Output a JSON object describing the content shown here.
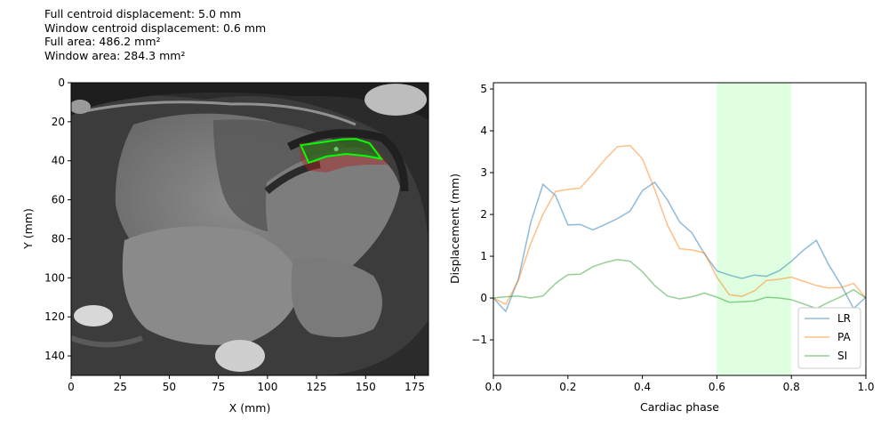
{
  "info_lines": [
    "Full centroid displacement: 5.0 mm",
    "Window centroid displacement: 0.6 mm",
    "Full area: 486.2 mm²",
    "Window area: 284.3 mm²"
  ],
  "colors": {
    "LR": "#1f77b4",
    "PA": "#ff7f0e",
    "SI": "#2ca02c",
    "window": "#ccffcc",
    "contour": "#00ff00",
    "full_region": "#b22222"
  },
  "chart_data": [
    {
      "type": "image",
      "xlabel": "X (mm)",
      "ylabel": "Y (mm)",
      "xlim": [
        0,
        182
      ],
      "ylim": [
        150,
        0
      ],
      "xticks": [
        0,
        25,
        50,
        75,
        100,
        125,
        150,
        175
      ],
      "yticks": [
        0,
        20,
        40,
        60,
        80,
        100,
        120,
        140
      ],
      "window_contour": [
        [
          117,
          32
        ],
        [
          128,
          30.5
        ],
        [
          138,
          29
        ],
        [
          145,
          28.8
        ],
        [
          152,
          31
        ],
        [
          158,
          39
        ],
        [
          150,
          37.5
        ],
        [
          140,
          36.5
        ],
        [
          130,
          37.8
        ],
        [
          121,
          41
        ]
      ],
      "full_region": [
        [
          116,
          31
        ],
        [
          128,
          30
        ],
        [
          142,
          28
        ],
        [
          152,
          30
        ],
        [
          159,
          38
        ],
        [
          161,
          42
        ],
        [
          150,
          42
        ],
        [
          140,
          43
        ],
        [
          130,
          46
        ],
        [
          121,
          45
        ],
        [
          117,
          40
        ]
      ],
      "centroid": [
        135,
        34
      ]
    },
    {
      "type": "line",
      "xlabel": "Cardiac phase",
      "ylabel": "Displacement (mm)",
      "xlim": [
        0,
        1
      ],
      "ylim": [
        -1.85,
        5.15
      ],
      "xticks": [
        0.0,
        0.2,
        0.4,
        0.6,
        0.8,
        1.0
      ],
      "yticks": [
        -1,
        0,
        1,
        2,
        3,
        4,
        5
      ],
      "window": [
        0.6,
        0.8
      ],
      "legend_position": "bottom-right",
      "x": [
        0,
        0.033,
        0.067,
        0.1,
        0.133,
        0.167,
        0.2,
        0.233,
        0.267,
        0.3,
        0.333,
        0.367,
        0.4,
        0.433,
        0.467,
        0.5,
        0.533,
        0.567,
        0.6,
        0.633,
        0.667,
        0.7,
        0.733,
        0.767,
        0.8,
        0.833,
        0.867,
        0.9,
        0.933,
        0.967,
        1.0
      ],
      "series": [
        {
          "name": "LR",
          "values": [
            0,
            -0.32,
            0.45,
            1.8,
            2.72,
            2.45,
            1.75,
            1.76,
            1.63,
            1.76,
            1.9,
            2.08,
            2.57,
            2.77,
            2.35,
            1.82,
            1.56,
            1.05,
            0.65,
            0.55,
            0.47,
            0.55,
            0.52,
            0.65,
            0.88,
            1.15,
            1.38,
            0.8,
            0.32,
            -0.25,
            0.02
          ]
        },
        {
          "name": "PA",
          "values": [
            0,
            -0.15,
            0.42,
            1.3,
            2.0,
            2.55,
            2.6,
            2.63,
            2.97,
            3.32,
            3.62,
            3.65,
            3.33,
            2.6,
            1.75,
            1.18,
            1.15,
            1.08,
            0.5,
            0.08,
            0.04,
            0.17,
            0.42,
            0.45,
            0.5,
            0.4,
            0.3,
            0.24,
            0.25,
            0.35,
            0.0
          ]
        },
        {
          "name": "SI",
          "values": [
            0,
            0.03,
            0.05,
            0.0,
            0.05,
            0.35,
            0.56,
            0.57,
            0.75,
            0.85,
            0.92,
            0.88,
            0.63,
            0.3,
            0.05,
            -0.02,
            0.03,
            0.12,
            0.02,
            -0.1,
            -0.09,
            -0.07,
            0.02,
            0.0,
            -0.04,
            -0.14,
            -0.25,
            -0.1,
            0.03,
            0.2,
            0.0
          ]
        }
      ]
    }
  ]
}
